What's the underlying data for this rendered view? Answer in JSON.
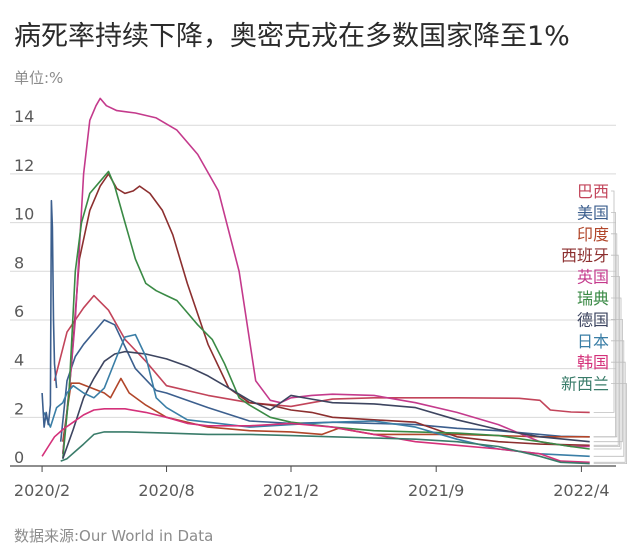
{
  "title": "病死率持续下降，奥密克戎在多数国家降至1%",
  "unit_label": "单位:%",
  "source_label": "数据来源:Our World in Data",
  "chart_data": {
    "type": "line",
    "title": "病死率持续下降，奥密克戎在多数国家降至1%",
    "ylabel": "单位:%",
    "xlabel": "",
    "ylim": [
      0,
      15.2
    ],
    "y_ticks": [
      0,
      2,
      4,
      6,
      8,
      10,
      12,
      14
    ],
    "x_ticks": [
      {
        "label": "2020/2",
        "t": 0
      },
      {
        "label": "2020/8",
        "t": 6
      },
      {
        "label": "2021/2",
        "t": 12
      },
      {
        "label": "2021/9",
        "t": 19
      },
      {
        "label": "2022/4",
        "t": 26
      }
    ],
    "x_unit": "months since 2020/2",
    "xlim": [
      -0.1,
      26.8
    ],
    "legend_position": "right",
    "grid": "horizontal",
    "series": [
      {
        "name": "巴西",
        "color": "#c2445a",
        "points": [
          [
            0.6,
            3.5
          ],
          [
            1.2,
            5.5
          ],
          [
            2.0,
            6.5
          ],
          [
            2.5,
            7.0
          ],
          [
            3.2,
            6.4
          ],
          [
            4,
            5.2
          ],
          [
            5,
            4.3
          ],
          [
            6,
            3.3
          ],
          [
            8,
            2.9
          ],
          [
            10,
            2.6
          ],
          [
            12,
            2.45
          ],
          [
            13,
            2.6
          ],
          [
            14,
            2.75
          ],
          [
            16,
            2.8
          ],
          [
            18,
            2.8
          ],
          [
            20,
            2.8
          ],
          [
            23,
            2.78
          ],
          [
            24,
            2.7
          ],
          [
            24.5,
            2.3
          ],
          [
            25.5,
            2.22
          ],
          [
            26.4,
            2.2
          ]
        ]
      },
      {
        "name": "美国",
        "color": "#3c5f8e",
        "points": [
          [
            0.9,
            1.0
          ],
          [
            1.2,
            3.5
          ],
          [
            1.6,
            4.5
          ],
          [
            2.0,
            5.0
          ],
          [
            2.5,
            5.5
          ],
          [
            3.0,
            6.0
          ],
          [
            3.5,
            5.8
          ],
          [
            4.5,
            4.0
          ],
          [
            5.5,
            3.1
          ],
          [
            6,
            3.0
          ],
          [
            8,
            2.4
          ],
          [
            10,
            1.85
          ],
          [
            12,
            1.75
          ],
          [
            14,
            1.8
          ],
          [
            16,
            1.75
          ],
          [
            18,
            1.7
          ],
          [
            20,
            1.55
          ],
          [
            22,
            1.45
          ],
          [
            24,
            1.3
          ],
          [
            25,
            1.22
          ],
          [
            26.4,
            1.2
          ]
        ]
      },
      {
        "name": "印度",
        "color": "#b1462a",
        "points": [
          [
            1.0,
            1.0
          ],
          [
            1.4,
            3.4
          ],
          [
            1.8,
            3.4
          ],
          [
            2.4,
            3.2
          ],
          [
            3.0,
            3.0
          ],
          [
            3.3,
            2.8
          ],
          [
            3.8,
            3.6
          ],
          [
            4.2,
            3.0
          ],
          [
            5,
            2.5
          ],
          [
            6,
            2.0
          ],
          [
            8,
            1.6
          ],
          [
            10,
            1.45
          ],
          [
            12,
            1.4
          ],
          [
            13.5,
            1.3
          ],
          [
            14.3,
            1.55
          ],
          [
            16,
            1.3
          ],
          [
            18,
            1.3
          ],
          [
            20,
            1.3
          ],
          [
            22,
            1.25
          ],
          [
            24,
            1.2
          ],
          [
            26.4,
            1.2
          ]
        ]
      },
      {
        "name": "西班牙",
        "color": "#8c2f2f",
        "points": [
          [
            1.0,
            0.5
          ],
          [
            1.4,
            4.0
          ],
          [
            1.8,
            8.5
          ],
          [
            2.3,
            10.5
          ],
          [
            2.8,
            11.5
          ],
          [
            3.2,
            12.0
          ],
          [
            3.6,
            11.4
          ],
          [
            4.0,
            11.2
          ],
          [
            4.4,
            11.3
          ],
          [
            4.7,
            11.5
          ],
          [
            5.2,
            11.2
          ],
          [
            5.8,
            10.5
          ],
          [
            6.3,
            9.5
          ],
          [
            7.0,
            7.5
          ],
          [
            8.0,
            5.0
          ],
          [
            9.0,
            3.2
          ],
          [
            10.0,
            2.6
          ],
          [
            11,
            2.5
          ],
          [
            12,
            2.3
          ],
          [
            13,
            2.2
          ],
          [
            14,
            2.0
          ],
          [
            16,
            1.9
          ],
          [
            18,
            1.8
          ],
          [
            20,
            1.2
          ],
          [
            22,
            1.0
          ],
          [
            24,
            0.9
          ],
          [
            26.4,
            0.85
          ]
        ]
      },
      {
        "name": "英国",
        "color": "#c43a8c",
        "points": [
          [
            1.0,
            0.5
          ],
          [
            1.3,
            3.0
          ],
          [
            1.6,
            6.0
          ],
          [
            2.0,
            12.0
          ],
          [
            2.3,
            14.2
          ],
          [
            2.6,
            14.8
          ],
          [
            2.8,
            15.1
          ],
          [
            3.1,
            14.8
          ],
          [
            3.6,
            14.6
          ],
          [
            4.5,
            14.5
          ],
          [
            5.5,
            14.3
          ],
          [
            6.5,
            13.8
          ],
          [
            7.5,
            12.8
          ],
          [
            8.5,
            11.3
          ],
          [
            9.5,
            8.0
          ],
          [
            10.3,
            3.5
          ],
          [
            11,
            2.7
          ],
          [
            11.5,
            2.6
          ],
          [
            12,
            2.8
          ],
          [
            13,
            2.9
          ],
          [
            14,
            2.95
          ],
          [
            16,
            2.9
          ],
          [
            18,
            2.6
          ],
          [
            20,
            2.2
          ],
          [
            22,
            1.7
          ],
          [
            24,
            1.0
          ],
          [
            25.5,
            0.8
          ],
          [
            26.4,
            0.8
          ]
        ]
      },
      {
        "name": "瑞典",
        "color": "#3a8a45",
        "points": [
          [
            1.0,
            0.3
          ],
          [
            1.3,
            3.0
          ],
          [
            1.6,
            8.0
          ],
          [
            1.9,
            10.0
          ],
          [
            2.3,
            11.2
          ],
          [
            2.8,
            11.7
          ],
          [
            3.2,
            12.1
          ],
          [
            3.5,
            11.5
          ],
          [
            4.0,
            10.0
          ],
          [
            4.5,
            8.5
          ],
          [
            5.0,
            7.5
          ],
          [
            5.5,
            7.2
          ],
          [
            6.0,
            7.0
          ],
          [
            6.5,
            6.8
          ],
          [
            7.0,
            6.3
          ],
          [
            7.5,
            5.8
          ],
          [
            8.2,
            5.2
          ],
          [
            8.8,
            4.2
          ],
          [
            9.5,
            2.8
          ],
          [
            10,
            2.5
          ],
          [
            11,
            2.0
          ],
          [
            12,
            1.8
          ],
          [
            14,
            1.6
          ],
          [
            16,
            1.45
          ],
          [
            18,
            1.4
          ],
          [
            20,
            1.35
          ],
          [
            22,
            1.25
          ],
          [
            24,
            1.0
          ],
          [
            25.5,
            0.8
          ],
          [
            26.4,
            0.7
          ]
        ]
      },
      {
        "name": "德国",
        "color": "#3d4560",
        "points": [
          [
            1.0,
            0.3
          ],
          [
            1.5,
            1.5
          ],
          [
            2.0,
            2.8
          ],
          [
            2.5,
            3.6
          ],
          [
            3.0,
            4.3
          ],
          [
            3.5,
            4.6
          ],
          [
            4.0,
            4.7
          ],
          [
            4.5,
            4.65
          ],
          [
            5.0,
            4.6
          ],
          [
            6.0,
            4.4
          ],
          [
            7.0,
            4.1
          ],
          [
            8.0,
            3.7
          ],
          [
            9.0,
            3.2
          ],
          [
            10,
            2.7
          ],
          [
            11,
            2.3
          ],
          [
            12,
            2.9
          ],
          [
            13,
            2.75
          ],
          [
            14,
            2.6
          ],
          [
            16,
            2.55
          ],
          [
            18,
            2.4
          ],
          [
            20,
            1.9
          ],
          [
            22,
            1.5
          ],
          [
            24,
            1.2
          ],
          [
            26.4,
            1.0
          ]
        ]
      },
      {
        "name": "日本",
        "color": "#3a7ea6",
        "points": [
          [
            0.1,
            2.2
          ],
          [
            0.4,
            1.6
          ],
          [
            0.7,
            2.4
          ],
          [
            1.0,
            2.6
          ],
          [
            1.2,
            3.0
          ],
          [
            1.5,
            3.3
          ],
          [
            2.0,
            3.0
          ],
          [
            2.5,
            2.8
          ],
          [
            3.0,
            3.2
          ],
          [
            3.6,
            4.5
          ],
          [
            4.0,
            5.3
          ],
          [
            4.5,
            5.4
          ],
          [
            5.0,
            4.5
          ],
          [
            5.5,
            2.8
          ],
          [
            6,
            2.4
          ],
          [
            7,
            1.9
          ],
          [
            8,
            1.8
          ],
          [
            10,
            1.6
          ],
          [
            12,
            1.7
          ],
          [
            14,
            1.8
          ],
          [
            16,
            1.85
          ],
          [
            18,
            1.6
          ],
          [
            20,
            1.1
          ],
          [
            22,
            0.7
          ],
          [
            24,
            0.5
          ],
          [
            26.4,
            0.4
          ]
        ]
      },
      {
        "name": "韩国",
        "color": "#d4317a",
        "points": [
          [
            0.0,
            0.4
          ],
          [
            0.3,
            0.8
          ],
          [
            0.6,
            1.2
          ],
          [
            1.0,
            1.5
          ],
          [
            1.5,
            1.8
          ],
          [
            2.0,
            2.1
          ],
          [
            2.5,
            2.3
          ],
          [
            3.0,
            2.35
          ],
          [
            4.0,
            2.35
          ],
          [
            5.0,
            2.2
          ],
          [
            6.0,
            2.0
          ],
          [
            7.0,
            1.75
          ],
          [
            8.0,
            1.65
          ],
          [
            10.0,
            1.65
          ],
          [
            12.0,
            1.75
          ],
          [
            14.0,
            1.6
          ],
          [
            16.0,
            1.3
          ],
          [
            18.0,
            1.0
          ],
          [
            20.0,
            0.85
          ],
          [
            22.0,
            0.7
          ],
          [
            24.0,
            0.5
          ],
          [
            25.0,
            0.2
          ],
          [
            26.4,
            0.15
          ]
        ]
      },
      {
        "name": "新西兰",
        "color": "#3a7c6a",
        "points": [
          [
            0.9,
            0.2
          ],
          [
            1.2,
            0.3
          ],
          [
            1.6,
            0.6
          ],
          [
            2.0,
            0.9
          ],
          [
            2.5,
            1.3
          ],
          [
            3.0,
            1.4
          ],
          [
            4.0,
            1.4
          ],
          [
            6.0,
            1.35
          ],
          [
            8.0,
            1.3
          ],
          [
            10.0,
            1.3
          ],
          [
            12.0,
            1.25
          ],
          [
            14.0,
            1.2
          ],
          [
            16.0,
            1.15
          ],
          [
            18.0,
            1.1
          ],
          [
            20.0,
            1.0
          ],
          [
            22.0,
            0.8
          ],
          [
            24.0,
            0.4
          ],
          [
            25.0,
            0.15
          ],
          [
            26.4,
            0.1
          ]
        ]
      }
    ],
    "extra_spikes": [
      {
        "color": "#3c5f8e",
        "points": [
          [
            0.0,
            3.0
          ],
          [
            0.1,
            1.6
          ],
          [
            0.2,
            2.2
          ],
          [
            0.3,
            1.7
          ],
          [
            0.4,
            2.5
          ],
          [
            0.45,
            10.9
          ],
          [
            0.5,
            9.8
          ],
          [
            0.55,
            6.0
          ],
          [
            0.6,
            4.2
          ],
          [
            0.7,
            3.2
          ]
        ]
      }
    ]
  }
}
